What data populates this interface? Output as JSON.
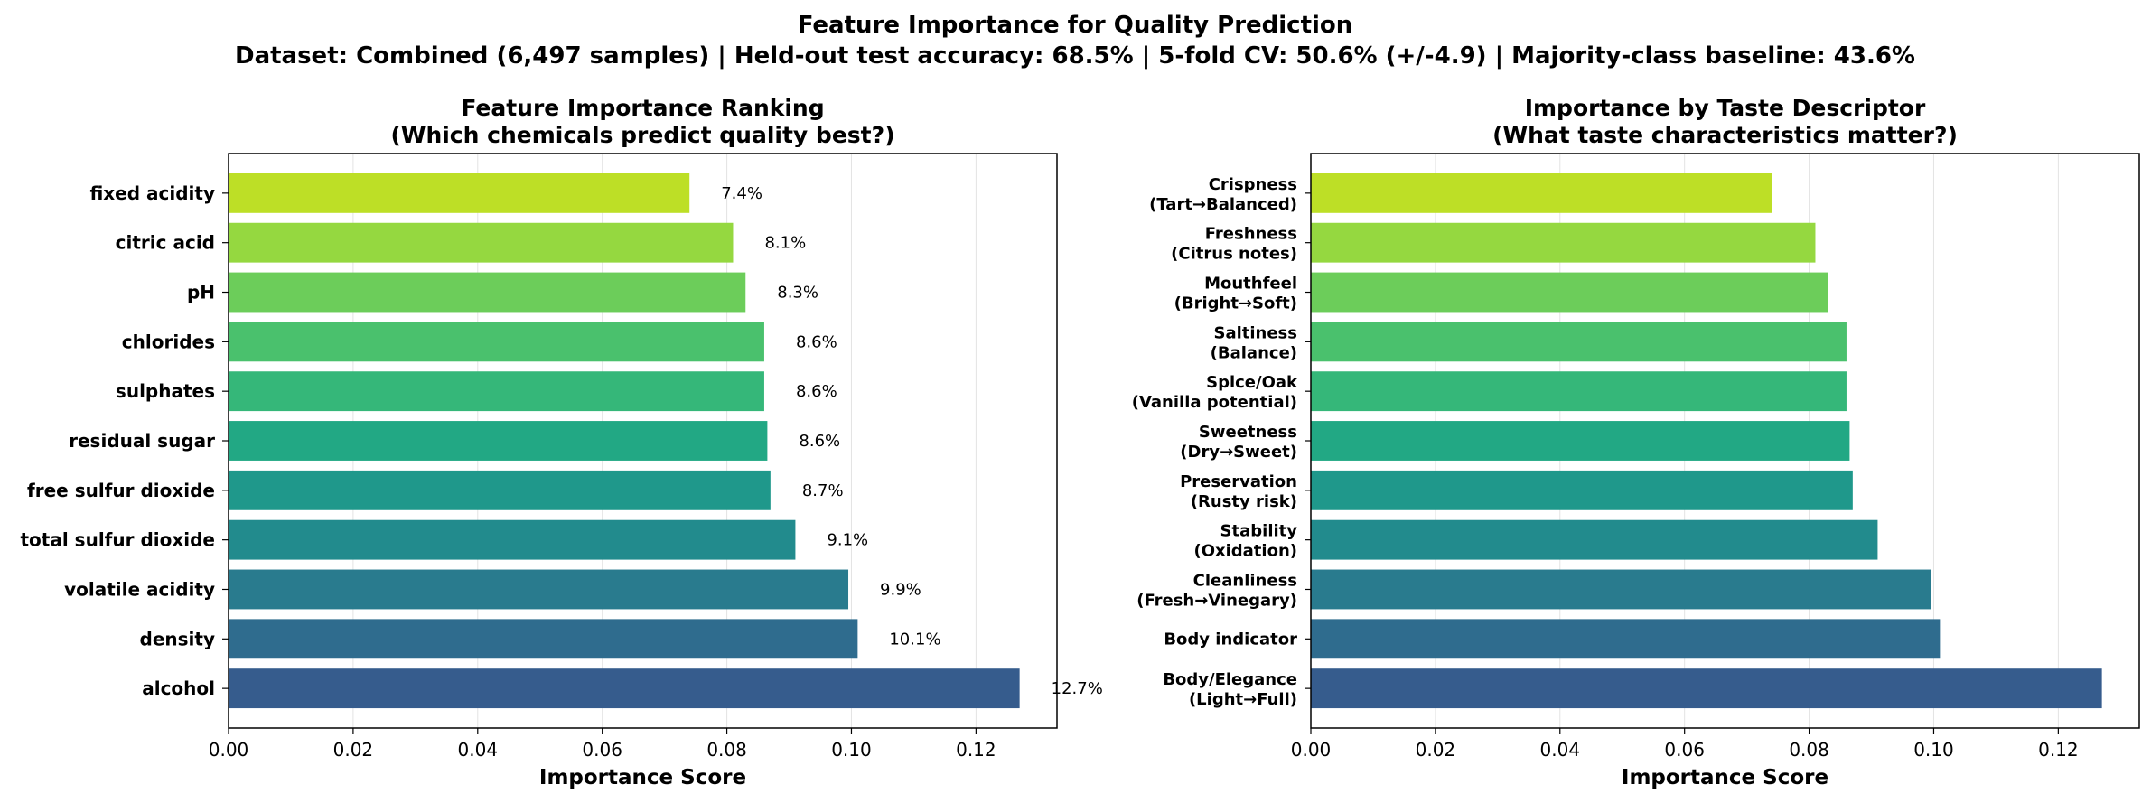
{
  "figure": {
    "title_line1": "Feature Importance for Quality Prediction",
    "title_line2": "Dataset: Combined (6,497 samples)  |  Held-out test accuracy: 68.5%  |  5-fold CV: 50.6% (+/-4.9)  |  Majority-class baseline: 43.6%"
  },
  "chart_data": [
    {
      "type": "bar",
      "orientation": "horizontal",
      "title_line1": "Feature Importance Ranking",
      "title_line2": "(Which chemicals predict quality best?)",
      "xlabel": "Importance Score",
      "ylabel": "",
      "xlim": [
        0,
        0.133
      ],
      "xticks": [
        "0.00",
        "0.02",
        "0.04",
        "0.06",
        "0.08",
        "0.10",
        "0.12"
      ],
      "grid": "vertical",
      "categories": [
        "fixed acidity",
        "citric acid",
        "pH",
        "chlorides",
        "sulphates",
        "residual sugar",
        "free sulfur dioxide",
        "total sulfur dioxide",
        "volatile acidity",
        "density",
        "alcohol"
      ],
      "values": [
        0.074,
        0.081,
        0.083,
        0.086,
        0.086,
        0.0865,
        0.087,
        0.091,
        0.0995,
        0.101,
        0.127
      ],
      "data_labels": [
        "7.4%",
        "8.1%",
        "8.3%",
        "8.6%",
        "8.6%",
        "8.6%",
        "8.7%",
        "9.1%",
        "9.9%",
        "10.1%",
        "12.7%"
      ],
      "colors": [
        "#bddf26",
        "#95d840",
        "#6ccd5a",
        "#4ac16d",
        "#35b779",
        "#22a884",
        "#1f988b",
        "#228b8d",
        "#297b8e",
        "#2f6c8e",
        "#365c8d"
      ]
    },
    {
      "type": "bar",
      "orientation": "horizontal",
      "title_line1": "Importance by Taste Descriptor",
      "title_line2": "(What taste characteristics matter?)",
      "xlabel": "Importance Score",
      "ylabel": "",
      "xlim": [
        0,
        0.133
      ],
      "xticks": [
        "0.00",
        "0.02",
        "0.04",
        "0.06",
        "0.08",
        "0.10",
        "0.12"
      ],
      "grid": "vertical",
      "categories": [
        [
          "Crispness",
          "(Tart→Balanced)"
        ],
        [
          "Freshness",
          "(Citrus notes)"
        ],
        [
          "Mouthfeel",
          "(Bright→Soft)"
        ],
        [
          "Saltiness",
          "(Balance)"
        ],
        [
          "Spice/Oak",
          "(Vanilla potential)"
        ],
        [
          "Sweetness",
          "(Dry→Sweet)"
        ],
        [
          "Preservation",
          "(Rusty risk)"
        ],
        [
          "Stability",
          "(Oxidation)"
        ],
        [
          "Cleanliness",
          "(Fresh→Vinegary)"
        ],
        [
          "Body indicator"
        ],
        [
          "Body/Elegance",
          "(Light→Full)"
        ]
      ],
      "values": [
        0.074,
        0.081,
        0.083,
        0.086,
        0.086,
        0.0865,
        0.087,
        0.091,
        0.0995,
        0.101,
        0.127
      ],
      "colors": [
        "#bddf26",
        "#95d840",
        "#6ccd5a",
        "#4ac16d",
        "#35b779",
        "#22a884",
        "#1f988b",
        "#228b8d",
        "#297b8e",
        "#2f6c8e",
        "#365c8d"
      ]
    }
  ]
}
